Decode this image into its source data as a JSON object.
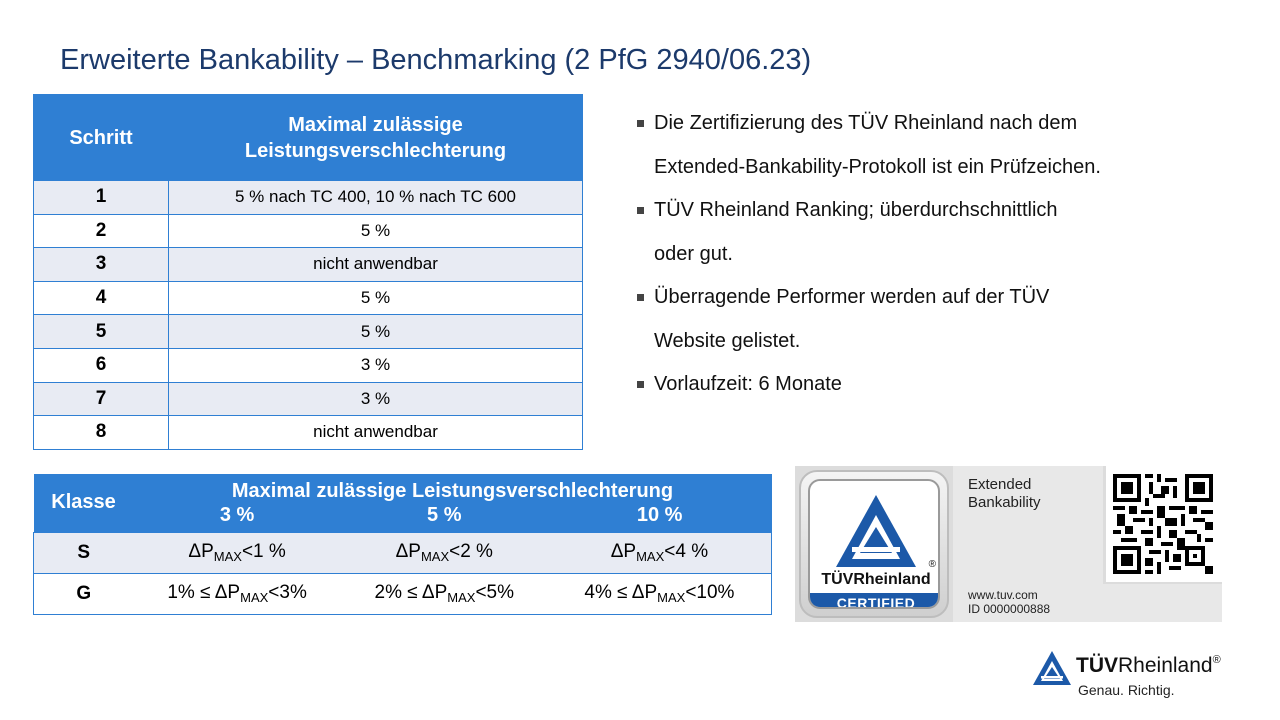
{
  "title": "Erweiterte Bankability – Benchmarking (2 PfG 2940/06.23)",
  "table1": {
    "headers": [
      "Schritt",
      "Maximal zulässige",
      "Leistungsverschlechterung"
    ],
    "rows": [
      [
        "1",
        "5 % nach TC 400, 10 % nach TC 600"
      ],
      [
        "2",
        "5 %"
      ],
      [
        "3",
        "nicht anwendbar"
      ],
      [
        "4",
        "5 %"
      ],
      [
        "5",
        "5 %"
      ],
      [
        "6",
        "3 %"
      ],
      [
        "7",
        "3 %"
      ],
      [
        "8",
        "nicht anwendbar"
      ]
    ]
  },
  "bullets": [
    {
      "line1": "Die Zertifizierung des TÜV Rheinland nach dem",
      "line2": "Extended-Bankability-Protokoll ist ein Prüfzeichen."
    },
    {
      "line1": "TÜV Rheinland Ranking; überdurchschnittlich",
      "line2": "oder gut."
    },
    {
      "line1": "Überragende Performer werden auf der TÜV",
      "line2": "Website gelistet."
    },
    {
      "line1": "Vorlaufzeit: 6 Monate",
      "line2": ""
    }
  ],
  "table2": {
    "header_klasse": "Klasse",
    "header_main": "Maximal zulässige Leistungsverschlechterung",
    "header_pcts": [
      "3 %",
      "5 %",
      "10 %"
    ],
    "delta": "ΔP",
    "sub": "MAX",
    "rowS": {
      "cls": "S",
      "c1": "<1 %",
      "c2": "<2 %",
      "c3": "<4 %"
    },
    "rowG": {
      "cls": "G",
      "p1": "1% ≤ ",
      "c1": "<3%",
      "p2": "2% ≤ ",
      "c2": "<5%",
      "p3": "4% ≤ ",
      "c3": "<10%"
    }
  },
  "certificate": {
    "brand": "TÜVRheinland",
    "reg": "®",
    "certified": "CERTIFIED",
    "title_line1": "Extended",
    "title_line2": "Bankability",
    "url": "www.tuv.com",
    "id": "ID  0000000888"
  },
  "footer": {
    "brand_bold": "TÜV",
    "brand_rest": "Rheinland",
    "reg": "®",
    "slogan": "Genau. Richtig."
  },
  "colors": {
    "accent": "#2f7fd3",
    "title": "#1c3a6b",
    "row_alt": "#e8ebf3",
    "brand_blue": "#1c59a8"
  }
}
